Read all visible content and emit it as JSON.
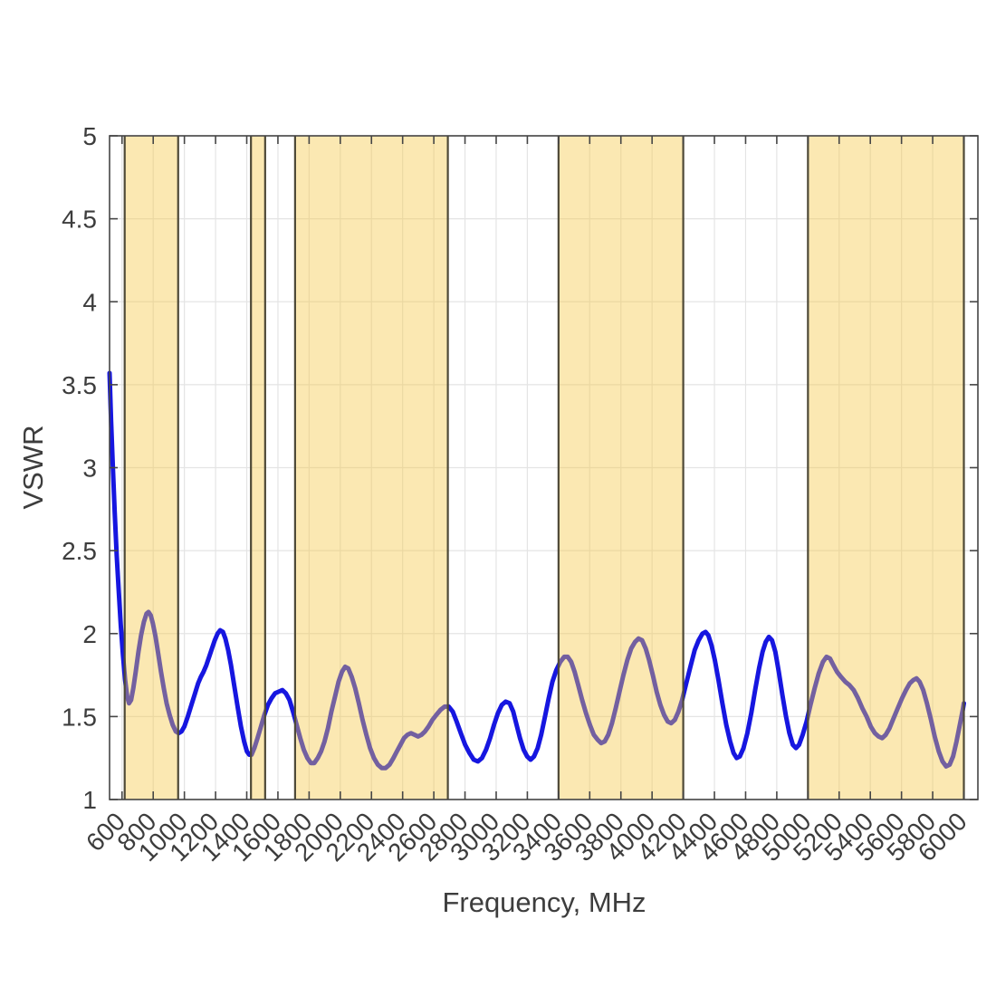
{
  "chart_data": {
    "type": "line",
    "title": "",
    "xlabel": "Frequency, MHz",
    "ylabel": "VSWR",
    "xlim": [
      520,
      6090
    ],
    "ylim": [
      1,
      5
    ],
    "grid": true,
    "legend": null,
    "x_ticks": [
      600,
      800,
      1000,
      1200,
      1400,
      1600,
      1800,
      2000,
      2200,
      2400,
      2600,
      2800,
      3000,
      3200,
      3400,
      3600,
      3800,
      4000,
      4200,
      4400,
      4600,
      4800,
      5000,
      5200,
      5400,
      5600,
      5800,
      6000
    ],
    "y_ticks": [
      1,
      1.5,
      2,
      2.5,
      3,
      3.5,
      4,
      4.5,
      5
    ],
    "highlight_bands": {
      "fill": "rgba(246,199,72,0.42)",
      "edge_color": "#4e4937",
      "edge_width": 2.2,
      "ranges_mhz": [
        [
          617,
          960
        ],
        [
          1427,
          1518
        ],
        [
          1710,
          2690
        ],
        [
          3400,
          4200
        ],
        [
          5000,
          6000
        ]
      ]
    },
    "series": [
      {
        "name": "VSWR",
        "color": "#1616e0",
        "line_width": 5,
        "points": [
          [
            520,
            3.57
          ],
          [
            530,
            3.28
          ],
          [
            541,
            3.01
          ],
          [
            553,
            2.73
          ],
          [
            566,
            2.47
          ],
          [
            579,
            2.25
          ],
          [
            592,
            2.05
          ],
          [
            606,
            1.87
          ],
          [
            620,
            1.72
          ],
          [
            633,
            1.62
          ],
          [
            645,
            1.58
          ],
          [
            658,
            1.6
          ],
          [
            672,
            1.67
          ],
          [
            688,
            1.77
          ],
          [
            705,
            1.89
          ],
          [
            722,
            1.99
          ],
          [
            740,
            2.07
          ],
          [
            757,
            2.12
          ],
          [
            770,
            2.13
          ],
          [
            784,
            2.11
          ],
          [
            798,
            2.06
          ],
          [
            815,
            1.98
          ],
          [
            832,
            1.88
          ],
          [
            850,
            1.77
          ],
          [
            868,
            1.67
          ],
          [
            886,
            1.58
          ],
          [
            905,
            1.51
          ],
          [
            925,
            1.45
          ],
          [
            945,
            1.41
          ],
          [
            963,
            1.4
          ],
          [
            981,
            1.41
          ],
          [
            1000,
            1.44
          ],
          [
            1022,
            1.5
          ],
          [
            1045,
            1.57
          ],
          [
            1068,
            1.64
          ],
          [
            1088,
            1.7
          ],
          [
            1106,
            1.74
          ],
          [
            1123,
            1.77
          ],
          [
            1141,
            1.81
          ],
          [
            1159,
            1.86
          ],
          [
            1177,
            1.91
          ],
          [
            1195,
            1.96
          ],
          [
            1213,
            2.0
          ],
          [
            1230,
            2.02
          ],
          [
            1247,
            2.01
          ],
          [
            1263,
            1.97
          ],
          [
            1281,
            1.9
          ],
          [
            1299,
            1.81
          ],
          [
            1319,
            1.69
          ],
          [
            1341,
            1.56
          ],
          [
            1363,
            1.44
          ],
          [
            1383,
            1.35
          ],
          [
            1401,
            1.29
          ],
          [
            1416,
            1.27
          ],
          [
            1431,
            1.27
          ],
          [
            1449,
            1.31
          ],
          [
            1469,
            1.37
          ],
          [
            1491,
            1.44
          ],
          [
            1513,
            1.51
          ],
          [
            1536,
            1.57
          ],
          [
            1559,
            1.61
          ],
          [
            1582,
            1.64
          ],
          [
            1605,
            1.65
          ],
          [
            1628,
            1.66
          ],
          [
            1651,
            1.64
          ],
          [
            1674,
            1.6
          ],
          [
            1697,
            1.53
          ],
          [
            1720,
            1.45
          ],
          [
            1743,
            1.37
          ],
          [
            1766,
            1.3
          ],
          [
            1789,
            1.25
          ],
          [
            1811,
            1.22
          ],
          [
            1833,
            1.22
          ],
          [
            1855,
            1.25
          ],
          [
            1877,
            1.29
          ],
          [
            1899,
            1.35
          ],
          [
            1921,
            1.43
          ],
          [
            1943,
            1.53
          ],
          [
            1966,
            1.62
          ],
          [
            1989,
            1.71
          ],
          [
            2011,
            1.77
          ],
          [
            2031,
            1.8
          ],
          [
            2051,
            1.79
          ],
          [
            2073,
            1.74
          ],
          [
            2096,
            1.67
          ],
          [
            2119,
            1.58
          ],
          [
            2143,
            1.48
          ],
          [
            2167,
            1.39
          ],
          [
            2191,
            1.31
          ],
          [
            2216,
            1.25
          ],
          [
            2241,
            1.21
          ],
          [
            2266,
            1.19
          ],
          [
            2291,
            1.19
          ],
          [
            2316,
            1.21
          ],
          [
            2341,
            1.25
          ],
          [
            2363,
            1.29
          ],
          [
            2386,
            1.33
          ],
          [
            2409,
            1.37
          ],
          [
            2431,
            1.39
          ],
          [
            2453,
            1.4
          ],
          [
            2476,
            1.39
          ],
          [
            2499,
            1.38
          ],
          [
            2521,
            1.39
          ],
          [
            2543,
            1.41
          ],
          [
            2566,
            1.44
          ],
          [
            2591,
            1.48
          ],
          [
            2616,
            1.51
          ],
          [
            2643,
            1.54
          ],
          [
            2669,
            1.56
          ],
          [
            2696,
            1.56
          ],
          [
            2721,
            1.53
          ],
          [
            2746,
            1.47
          ],
          [
            2773,
            1.4
          ],
          [
            2801,
            1.33
          ],
          [
            2829,
            1.28
          ],
          [
            2856,
            1.24
          ],
          [
            2883,
            1.23
          ],
          [
            2909,
            1.25
          ],
          [
            2935,
            1.3
          ],
          [
            2961,
            1.37
          ],
          [
            2986,
            1.45
          ],
          [
            3011,
            1.52
          ],
          [
            3036,
            1.57
          ],
          [
            3061,
            1.59
          ],
          [
            3086,
            1.58
          ],
          [
            3109,
            1.53
          ],
          [
            3131,
            1.45
          ],
          [
            3153,
            1.37
          ],
          [
            3176,
            1.3
          ],
          [
            3199,
            1.26
          ],
          [
            3221,
            1.24
          ],
          [
            3243,
            1.26
          ],
          [
            3266,
            1.31
          ],
          [
            3289,
            1.39
          ],
          [
            3313,
            1.5
          ],
          [
            3337,
            1.61
          ],
          [
            3361,
            1.71
          ],
          [
            3386,
            1.78
          ],
          [
            3411,
            1.83
          ],
          [
            3436,
            1.86
          ],
          [
            3459,
            1.86
          ],
          [
            3481,
            1.83
          ],
          [
            3503,
            1.77
          ],
          [
            3526,
            1.69
          ],
          [
            3551,
            1.6
          ],
          [
            3576,
            1.52
          ],
          [
            3601,
            1.45
          ],
          [
            3626,
            1.39
          ],
          [
            3651,
            1.36
          ],
          [
            3673,
            1.34
          ],
          [
            3696,
            1.35
          ],
          [
            3719,
            1.39
          ],
          [
            3743,
            1.46
          ],
          [
            3767,
            1.55
          ],
          [
            3791,
            1.65
          ],
          [
            3816,
            1.75
          ],
          [
            3841,
            1.84
          ],
          [
            3866,
            1.91
          ],
          [
            3891,
            1.95
          ],
          [
            3913,
            1.97
          ],
          [
            3936,
            1.96
          ],
          [
            3959,
            1.91
          ],
          [
            3981,
            1.84
          ],
          [
            4005,
            1.75
          ],
          [
            4029,
            1.65
          ],
          [
            4053,
            1.57
          ],
          [
            4077,
            1.51
          ],
          [
            4101,
            1.47
          ],
          [
            4123,
            1.46
          ],
          [
            4146,
            1.48
          ],
          [
            4169,
            1.53
          ],
          [
            4193,
            1.6
          ],
          [
            4219,
            1.7
          ],
          [
            4246,
            1.8
          ],
          [
            4273,
            1.9
          ],
          [
            4299,
            1.96
          ],
          [
            4323,
            2.0
          ],
          [
            4343,
            2.01
          ],
          [
            4361,
            1.99
          ],
          [
            4381,
            1.93
          ],
          [
            4403,
            1.84
          ],
          [
            4426,
            1.72
          ],
          [
            4451,
            1.58
          ],
          [
            4476,
            1.45
          ],
          [
            4501,
            1.35
          ],
          [
            4523,
            1.28
          ],
          [
            4543,
            1.25
          ],
          [
            4563,
            1.26
          ],
          [
            4586,
            1.31
          ],
          [
            4611,
            1.4
          ],
          [
            4636,
            1.52
          ],
          [
            4661,
            1.66
          ],
          [
            4686,
            1.79
          ],
          [
            4709,
            1.89
          ],
          [
            4729,
            1.95
          ],
          [
            4749,
            1.98
          ],
          [
            4769,
            1.96
          ],
          [
            4791,
            1.89
          ],
          [
            4813,
            1.77
          ],
          [
            4836,
            1.63
          ],
          [
            4859,
            1.5
          ],
          [
            4881,
            1.4
          ],
          [
            4903,
            1.33
          ],
          [
            4923,
            1.31
          ],
          [
            4943,
            1.33
          ],
          [
            4966,
            1.39
          ],
          [
            4991,
            1.47
          ],
          [
            5016,
            1.57
          ],
          [
            5043,
            1.67
          ],
          [
            5069,
            1.76
          ],
          [
            5096,
            1.83
          ],
          [
            5119,
            1.86
          ],
          [
            5141,
            1.85
          ],
          [
            5163,
            1.81
          ],
          [
            5186,
            1.77
          ],
          [
            5211,
            1.74
          ],
          [
            5239,
            1.71
          ],
          [
            5266,
            1.69
          ],
          [
            5293,
            1.66
          ],
          [
            5321,
            1.61
          ],
          [
            5349,
            1.55
          ],
          [
            5376,
            1.5
          ],
          [
            5403,
            1.44
          ],
          [
            5429,
            1.4
          ],
          [
            5453,
            1.38
          ],
          [
            5476,
            1.37
          ],
          [
            5499,
            1.39
          ],
          [
            5523,
            1.43
          ],
          [
            5549,
            1.49
          ],
          [
            5576,
            1.55
          ],
          [
            5603,
            1.61
          ],
          [
            5629,
            1.66
          ],
          [
            5653,
            1.7
          ],
          [
            5676,
            1.72
          ],
          [
            5696,
            1.73
          ],
          [
            5716,
            1.71
          ],
          [
            5739,
            1.66
          ],
          [
            5763,
            1.58
          ],
          [
            5789,
            1.48
          ],
          [
            5813,
            1.38
          ],
          [
            5839,
            1.29
          ],
          [
            5863,
            1.23
          ],
          [
            5886,
            1.2
          ],
          [
            5909,
            1.21
          ],
          [
            5931,
            1.26
          ],
          [
            5953,
            1.35
          ],
          [
            5976,
            1.46
          ],
          [
            5993,
            1.54
          ],
          [
            6000,
            1.58
          ]
        ]
      }
    ]
  },
  "style": {
    "background": "#ffffff",
    "axis_color": "#454545",
    "grid_color": "#e4e4e4",
    "text_color": "#3d3d3d",
    "tick_label_font_px": 28,
    "axis_label_font_px": 31
  }
}
